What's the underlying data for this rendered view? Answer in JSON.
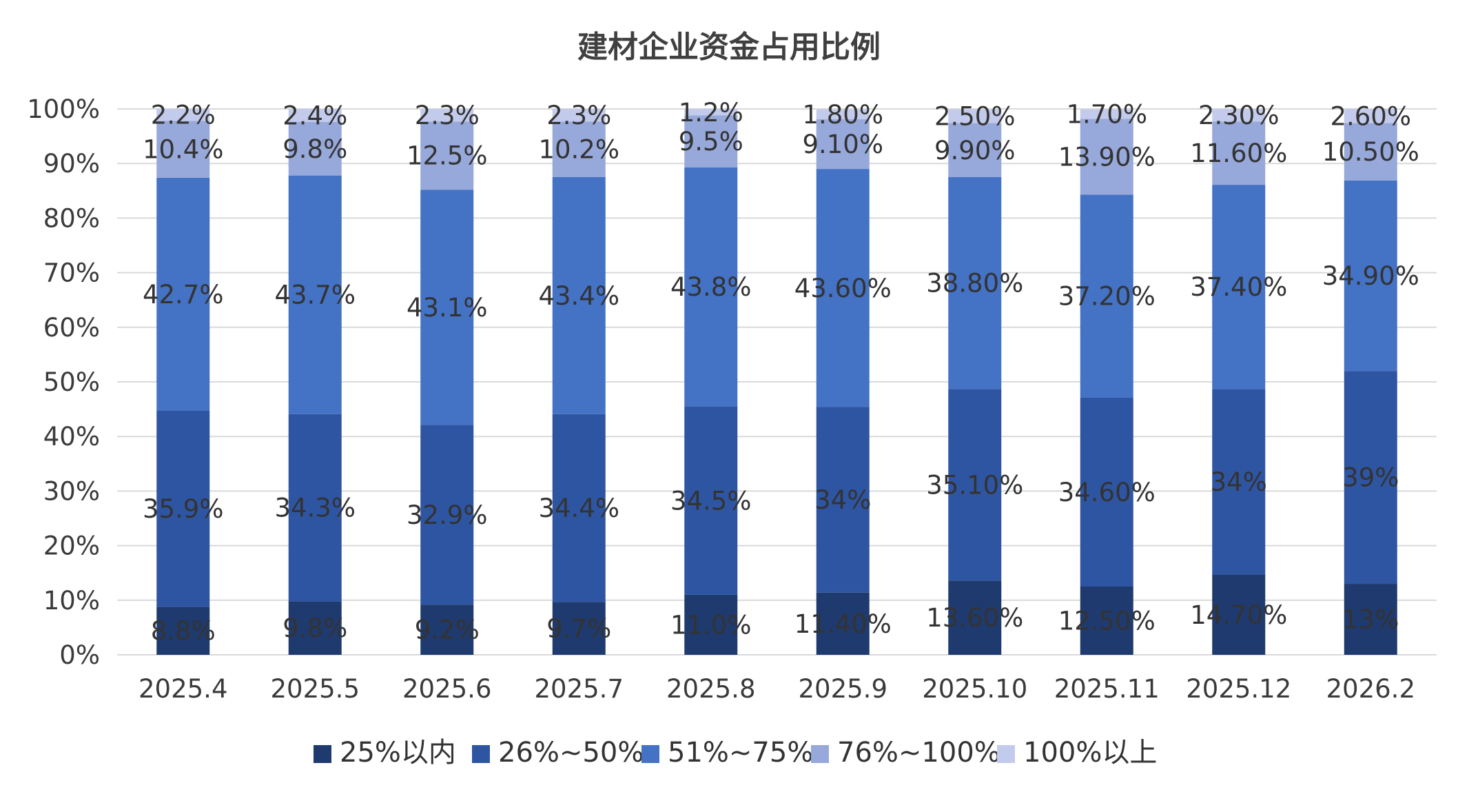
{
  "chart_data": {
    "type": "bar",
    "stacked": true,
    "title": "建材企业资金占用比例",
    "xlabel": "",
    "ylabel": "",
    "ylim": [
      0,
      100
    ],
    "y_ticks": [
      "0%",
      "10%",
      "20%",
      "30%",
      "40%",
      "50%",
      "60%",
      "70%",
      "80%",
      "90%",
      "100%"
    ],
    "grid": true,
    "legend_position": "bottom",
    "categories": [
      "2025.4",
      "2025.5",
      "2025.6",
      "2025.7",
      "2025.8",
      "2025.9",
      "2025.10",
      "2025.11",
      "2025.12",
      "2026.2"
    ],
    "series": [
      {
        "name": "25%以内",
        "color": "#1f3a6e",
        "values": [
          8.8,
          9.8,
          9.2,
          9.7,
          11.0,
          11.4,
          13.6,
          12.5,
          14.7,
          13
        ],
        "labels": [
          "8.8%",
          "9.8%",
          "9.2%",
          "9.7%",
          "11.0%",
          "11.40%",
          "13.60%",
          "12.50%",
          "14.70%",
          "13%"
        ]
      },
      {
        "name": "26%~50%",
        "color": "#2e55a2",
        "values": [
          35.9,
          34.3,
          32.9,
          34.4,
          34.5,
          34,
          35.1,
          34.6,
          34,
          39
        ],
        "labels": [
          "35.9%",
          "34.3%",
          "32.9%",
          "34.4%",
          "34.5%",
          "34%",
          "35.10%",
          "34.60%",
          "34%",
          "39%"
        ]
      },
      {
        "name": "51%~75%",
        "color": "#4472c4",
        "values": [
          42.7,
          43.7,
          43.1,
          43.4,
          43.8,
          43.6,
          38.8,
          37.2,
          37.4,
          34.9
        ],
        "labels": [
          "42.7%",
          "43.7%",
          "43.1%",
          "43.4%",
          "43.8%",
          "43.60%",
          "38.80%",
          "37.20%",
          "37.40%",
          "34.90%"
        ]
      },
      {
        "name": "76%~100%",
        "color": "#97a8da",
        "values": [
          10.4,
          9.8,
          12.5,
          10.2,
          9.5,
          9.1,
          9.9,
          13.9,
          11.6,
          10.5
        ],
        "labels": [
          "10.4%",
          "9.8%",
          "12.5%",
          "10.2%",
          "9.5%",
          "9.10%",
          "9.90%",
          "13.90%",
          "11.60%",
          "10.50%"
        ]
      },
      {
        "name": "100%以上",
        "color": "#c3cbec",
        "values": [
          2.2,
          2.4,
          2.3,
          2.3,
          1.2,
          1.8,
          2.5,
          1.7,
          2.3,
          2.6
        ],
        "labels": [
          "2.2%",
          "2.4%",
          "2.3%",
          "2.3%",
          "1.2%",
          "1.80%",
          "2.50%",
          "1.70%",
          "2.30%",
          "2.60%"
        ]
      }
    ]
  }
}
